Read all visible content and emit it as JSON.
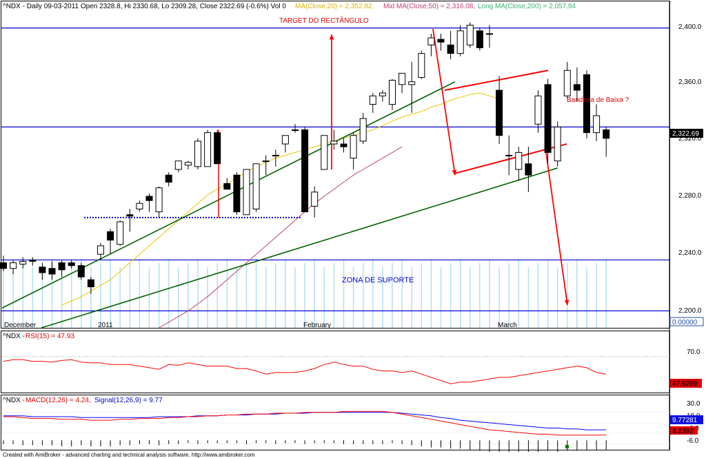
{
  "window": {
    "footer": "Created with AmiBroker - advanced charting and technical analysis software. http://www.amibroker.com"
  },
  "header": {
    "prefix": "^NDX - Daily 09-03-2011 Open 2328.8, Hi 2330.68, Lo 2309.28, Close 2322.69 (-0.6%) Vol 0",
    "ma20": "MA(Close,20) = 2,352.82,",
    "ma50": "Mid MA(Close,50) = 2,316.08,",
    "ma200": "Long MA(Close,200) = 2,057.94"
  },
  "annotations": {
    "target": "TARGET DO RECTÂNGULO",
    "flag": "Bandeira de Baixa ?",
    "support": "ZONA DE SUPORTE"
  },
  "price_scale": {
    "ticks": [
      "2,400.0",
      "2,360.0",
      "2,320.0",
      "2,280.0",
      "2,240.0",
      "2,200.0"
    ],
    "last": "2,322.69",
    "volume": "0.00000"
  },
  "date_labels": [
    "December",
    "2011",
    "February",
    "March"
  ],
  "rsi_panel": {
    "prefix": "^NDX - ",
    "title": "RSI(15) = 47.93",
    "ticks": [
      "70.0"
    ],
    "last": "47.9269"
  },
  "macd_panel": {
    "prefix": "^NDX - ",
    "macd": "MACD(12,26) = 4.24,",
    "signal": "Signal(12,26,9) = 9.77",
    "ticks": [
      "30.0",
      "18.0",
      "6.0",
      "-6.0"
    ],
    "macd_last": "4.2392",
    "signal_last": "9.77281"
  },
  "colors": {
    "up": "#ffffff",
    "down": "#000000",
    "ma20": "#e8c800",
    "ma50": "#c04070",
    "hline": "#0000d0",
    "rsi": "#ff0000",
    "macd": "#ff0000",
    "signal": "#0000ff",
    "volume": "#b0e0f0",
    "trend": "#006400",
    "arrow": "#ff0000"
  },
  "chart_data": [
    {
      "type": "candlestick",
      "title": "^NDX - Daily",
      "ylim": [
        2188,
        2412
      ],
      "ohlc": [
        [
          2234,
          2239,
          2228,
          2230
        ],
        [
          2230,
          2236,
          2226,
          2234
        ],
        [
          2233,
          2238,
          2230,
          2235
        ],
        [
          2236,
          2238,
          2232,
          2235
        ],
        [
          2231,
          2234,
          2222,
          2227
        ],
        [
          2230,
          2235,
          2222,
          2226
        ],
        [
          2234,
          2236,
          2224,
          2229
        ],
        [
          2234,
          2236,
          2230,
          2232
        ],
        [
          2232,
          2234,
          2222,
          2224
        ],
        [
          2222,
          2224,
          2212,
          2217
        ],
        [
          2240,
          2248,
          2236,
          2246
        ],
        [
          2256,
          2258,
          2240,
          2250
        ],
        [
          2247,
          2264,
          2246,
          2263
        ],
        [
          2268,
          2272,
          2256,
          2267
        ],
        [
          2272,
          2278,
          2270,
          2276
        ],
        [
          2281,
          2283,
          2270,
          2278
        ],
        [
          2270,
          2288,
          2266,
          2287
        ],
        [
          2296,
          2298,
          2288,
          2291
        ],
        [
          2300,
          2306,
          2298,
          2306
        ],
        [
          2303,
          2306,
          2300,
          2305
        ],
        [
          2302,
          2322,
          2300,
          2320
        ],
        [
          2302,
          2328,
          2302,
          2326
        ],
        [
          2326,
          2328,
          2304,
          2304
        ],
        [
          2290,
          2294,
          2286,
          2286
        ],
        [
          2296,
          2298,
          2268,
          2270
        ],
        [
          2268,
          2300,
          2268,
          2300
        ],
        [
          2272,
          2304,
          2270,
          2304
        ],
        [
          2306,
          2310,
          2296,
          2306
        ],
        [
          2310,
          2314,
          2302,
          2310
        ],
        [
          2318,
          2324,
          2312,
          2324
        ],
        [
          2328,
          2332,
          2326,
          2328
        ],
        [
          2328,
          2330,
          2270,
          2270
        ],
        [
          2274,
          2288,
          2266,
          2284
        ],
        [
          2300,
          2324,
          2300,
          2324
        ],
        [
          2318,
          2328,
          2314,
          2320
        ],
        [
          2318,
          2322,
          2312,
          2316
        ],
        [
          2308,
          2326,
          2300,
          2324
        ],
        [
          2320,
          2340,
          2318,
          2336
        ],
        [
          2346,
          2354,
          2340,
          2352
        ],
        [
          2352,
          2356,
          2348,
          2354
        ],
        [
          2346,
          2364,
          2342,
          2363
        ],
        [
          2360,
          2368,
          2354,
          2368
        ],
        [
          2360,
          2376,
          2340,
          2362
        ],
        [
          2365,
          2384,
          2364,
          2382
        ],
        [
          2388,
          2396,
          2380,
          2393
        ],
        [
          2392,
          2396,
          2384,
          2390
        ],
        [
          2388,
          2398,
          2378,
          2382
        ],
        [
          2382,
          2402,
          2380,
          2398
        ],
        [
          2388,
          2404,
          2386,
          2402
        ],
        [
          2398,
          2400,
          2384,
          2386
        ],
        [
          2396,
          2402,
          2386,
          2396
        ],
        [
          2356,
          2366,
          2318,
          2324
        ],
        [
          2310,
          2324,
          2296,
          2310
        ],
        [
          2300,
          2316,
          2292,
          2312
        ],
        [
          2304,
          2316,
          2284,
          2296
        ],
        [
          2332,
          2356,
          2326,
          2352
        ],
        [
          2360,
          2364,
          2304,
          2312
        ],
        [
          2306,
          2334,
          2302,
          2330
        ],
        [
          2352,
          2376,
          2350,
          2370
        ],
        [
          2360,
          2372,
          2348,
          2356
        ],
        [
          2367,
          2370,
          2322,
          2326
        ],
        [
          2326,
          2346,
          2320,
          2338
        ],
        [
          2328,
          2330,
          2309,
          2322
        ]
      ],
      "volume": [
        0.5,
        0.5,
        0.5,
        0.5,
        0.5,
        0.5,
        0.5,
        0.5,
        0.5,
        0.5,
        0.5,
        0.5,
        0.5,
        0.5,
        0.5,
        0.5,
        0.5,
        0.5,
        0.5,
        0.5,
        0.5,
        0.5,
        0.5,
        0.5,
        0.5,
        0.5,
        0.5,
        0.5,
        0.5,
        0.5,
        0.5,
        0.5,
        0.5,
        0.5,
        0.5,
        0.5,
        0.5,
        0.5,
        0.5,
        0.5,
        0.5,
        0.5,
        0.5,
        0.5,
        0.5,
        0.5,
        0.5,
        0.5,
        0.5,
        0.5,
        0.5,
        0.5,
        0.5,
        0.5,
        0.5,
        0.5,
        0.5,
        0.5,
        0.5,
        0.5,
        0.5,
        0.5,
        0.5
      ],
      "ma20": [
        2204,
        2207,
        2210,
        2214,
        2218,
        2222,
        2228,
        2234,
        2240,
        2246,
        2252,
        2258,
        2264,
        2270,
        2276,
        2282,
        2286,
        2290,
        2294,
        2298,
        2302,
        2305,
        2308,
        2310,
        2312,
        2314,
        2316,
        2318,
        2320,
        2322,
        2324,
        2326,
        2328,
        2331,
        2334,
        2337,
        2339,
        2341,
        2344,
        2346,
        2349,
        2351,
        2353,
        2354,
        2352,
        2350
      ],
      "ma50": [
        2188,
        2192,
        2196,
        2200,
        2205,
        2210,
        2216,
        2222,
        2228,
        2234,
        2240,
        2246,
        2252,
        2258,
        2264,
        2270,
        2276,
        2281,
        2286,
        2291,
        2296,
        2300,
        2304,
        2308,
        2312,
        2316
      ],
      "hlines": [
        2400,
        2330,
        2236,
        2200
      ],
      "support_zone": [
        2200,
        2236
      ],
      "rectangle_base": 2266,
      "target": 2400
    },
    {
      "type": "line",
      "title": "RSI(15)",
      "ylim": [
        25,
        92
      ],
      "series": [
        {
          "name": "RSI(15)",
          "values": [
            64,
            66,
            66,
            64,
            64,
            63,
            65,
            66,
            63,
            62,
            62,
            60,
            60,
            60,
            58,
            56,
            54,
            60,
            59,
            62,
            60,
            58,
            58,
            58,
            55,
            55,
            52,
            48,
            50,
            50,
            50,
            52,
            55,
            60,
            63,
            60,
            58,
            58,
            54,
            52,
            52,
            50,
            52,
            48,
            44,
            40,
            36,
            38,
            38,
            40,
            42,
            44,
            44,
            46,
            48,
            50,
            52,
            54,
            56,
            58,
            56,
            50,
            48
          ]
        }
      ],
      "hline": 70
    },
    {
      "type": "line",
      "title": "MACD(12,26) / Signal(12,26,9)",
      "ylim": [
        -12,
        40
      ],
      "series": [
        {
          "name": "MACD(12,26)",
          "values": [
            25,
            25,
            24,
            23,
            23,
            23,
            22,
            22,
            22,
            21,
            21,
            21,
            22,
            22,
            23,
            23,
            23,
            24,
            24,
            25,
            25,
            26,
            26,
            27,
            27,
            28,
            28,
            28,
            29,
            29,
            29,
            30,
            30,
            30,
            30,
            31,
            31,
            31,
            31,
            31,
            30,
            28,
            26,
            24,
            22,
            20,
            18,
            16,
            14,
            12,
            10,
            9,
            8,
            7,
            6,
            5,
            5,
            4,
            4,
            4,
            4,
            4,
            4
          ]
        },
        {
          "name": "Signal(12,26,9)",
          "values": [
            26,
            26,
            26,
            25,
            25,
            25,
            25,
            25,
            24,
            24,
            24,
            24,
            24,
            24,
            24,
            24,
            25,
            25,
            25,
            25,
            26,
            26,
            26,
            27,
            27,
            27,
            28,
            28,
            28,
            29,
            29,
            29,
            30,
            30,
            30,
            30,
            30,
            30,
            30,
            30,
            30,
            29,
            28,
            27,
            26,
            24,
            23,
            21,
            20,
            19,
            18,
            17,
            16,
            15,
            14,
            13,
            12,
            12,
            11,
            11,
            10,
            10,
            10
          ]
        }
      ]
    }
  ]
}
